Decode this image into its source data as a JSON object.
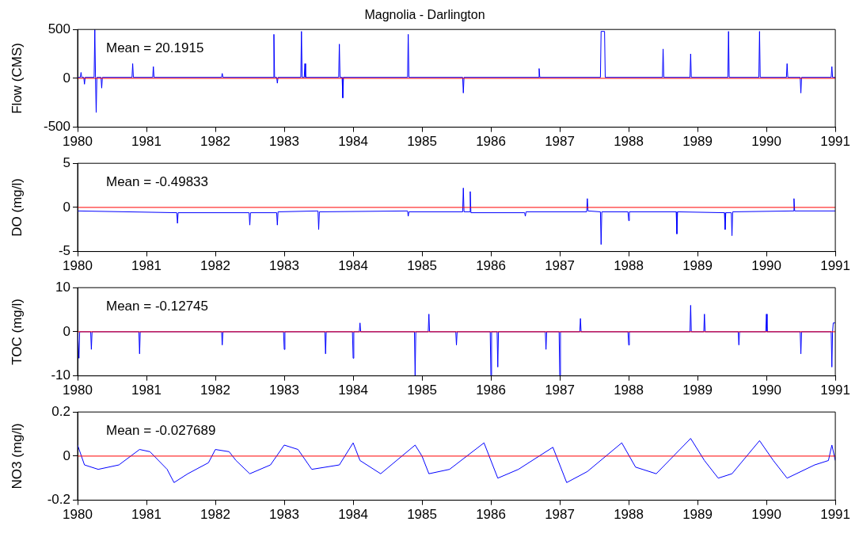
{
  "chart_data": [
    {
      "type": "line",
      "title": "Magnolia - Darlington",
      "ylabel": "Flow (CMS)",
      "xlim": [
        1980,
        1991
      ],
      "xticks": [
        1980,
        1981,
        1982,
        1983,
        1984,
        1985,
        1986,
        1987,
        1988,
        1989,
        1990,
        1991
      ],
      "ylim": [
        -500,
        500
      ],
      "yticks": [
        -500,
        0,
        500
      ],
      "annotations": [
        "Mean = 20.1915"
      ],
      "ref_lines": [
        {
          "axis": "y",
          "value": 0,
          "color": "#ff0000"
        }
      ],
      "x": [
        1980,
        1980.04,
        1980.05,
        1980.06,
        1980.09,
        1980.1,
        1980.11,
        1980.24,
        1980.25,
        1980.26,
        1980.27,
        1980.28,
        1980.34,
        1980.35,
        1980.36,
        1980.79,
        1980.8,
        1980.81,
        1981.09,
        1981.1,
        1981.11,
        1982.09,
        1982.1,
        1982.11,
        1982.84,
        1982.85,
        1982.86,
        1982.89,
        1982.9,
        1982.91,
        1983.24,
        1983.25,
        1983.26,
        1983.29,
        1983.3,
        1983.31,
        1983.79,
        1983.8,
        1983.81,
        1983.84,
        1983.85,
        1983.86,
        1984.79,
        1984.8,
        1984.81,
        1985.59,
        1985.6,
        1985.61,
        1986.69,
        1986.7,
        1986.71,
        1987.59,
        1987.6,
        1987.65,
        1987.66,
        1988.49,
        1988.5,
        1988.51,
        1988.89,
        1988.9,
        1988.91,
        1989.44,
        1989.45,
        1989.46,
        1989.89,
        1989.9,
        1989.91,
        1990.29,
        1990.3,
        1990.31,
        1990.49,
        1990.5,
        1990.51,
        1990.94,
        1990.95,
        1990.96,
        1991
      ],
      "series": [
        {
          "color": "#0000ff",
          "values": [
            10,
            10,
            60,
            10,
            10,
            -60,
            10,
            10,
            500,
            10,
            -350,
            10,
            10,
            -100,
            10,
            10,
            150,
            10,
            10,
            120,
            10,
            10,
            50,
            10,
            10,
            450,
            10,
            10,
            -50,
            10,
            10,
            480,
            10,
            10,
            150,
            10,
            10,
            350,
            10,
            10,
            -200,
            10,
            10,
            450,
            10,
            10,
            -150,
            10,
            10,
            100,
            10,
            10,
            480,
            480,
            10,
            10,
            300,
            10,
            10,
            250,
            10,
            10,
            480,
            10,
            10,
            480,
            10,
            10,
            150,
            10,
            10,
            -150,
            10,
            10,
            120,
            10,
            10
          ]
        }
      ]
    },
    {
      "type": "line",
      "ylabel": "DO (mg/l)",
      "xlim": [
        1980,
        1991
      ],
      "xticks": [
        1980,
        1981,
        1982,
        1983,
        1984,
        1985,
        1986,
        1987,
        1988,
        1989,
        1990,
        1991
      ],
      "ylim": [
        -5,
        5
      ],
      "yticks": [
        -5,
        0,
        5
      ],
      "annotations": [
        "Mean = -0.49833"
      ],
      "ref_lines": [
        {
          "axis": "y",
          "value": 0,
          "color": "#ff0000"
        }
      ],
      "x": [
        1980,
        1981.44,
        1981.45,
        1981.46,
        1982.49,
        1982.5,
        1982.51,
        1982.89,
        1982.9,
        1982.91,
        1983.49,
        1983.5,
        1983.51,
        1984.79,
        1984.8,
        1984.81,
        1985.59,
        1985.6,
        1985.61,
        1985.69,
        1985.7,
        1985.71,
        1986.49,
        1986.5,
        1986.51,
        1987.39,
        1987.4,
        1987.41,
        1987.59,
        1987.6,
        1987.61,
        1987.99,
        1988,
        1988.01,
        1988.69,
        1988.7,
        1988.71,
        1989.39,
        1989.4,
        1989.41,
        1989.49,
        1989.5,
        1989.51,
        1990.39,
        1990.4,
        1990.41,
        1991
      ],
      "series": [
        {
          "color": "#0000ff",
          "values": [
            -0.4,
            -0.6,
            -1.8,
            -0.6,
            -0.6,
            -2,
            -0.6,
            -0.6,
            -2,
            -0.5,
            -0.4,
            -2.5,
            -0.5,
            -0.4,
            -1,
            -0.5,
            -0.5,
            2.2,
            -0.5,
            -0.5,
            1.8,
            -0.6,
            -0.6,
            -1,
            -0.5,
            -0.5,
            1,
            -0.4,
            -0.5,
            -4.2,
            -0.5,
            -0.5,
            -1.5,
            -0.5,
            -0.5,
            -3,
            -0.5,
            -0.6,
            -2.5,
            -0.6,
            -0.6,
            -3.2,
            -0.5,
            -0.4,
            1,
            -0.4,
            -0.4
          ]
        }
      ]
    },
    {
      "type": "line",
      "ylabel": "TOC (mg/l)",
      "xlim": [
        1980,
        1991
      ],
      "xticks": [
        1980,
        1981,
        1982,
        1983,
        1984,
        1985,
        1986,
        1987,
        1988,
        1989,
        1990,
        1991
      ],
      "ylim": [
        -10,
        10
      ],
      "yticks": [
        -10,
        0,
        10
      ],
      "annotations": [
        "Mean = -0.12745"
      ],
      "ref_lines": [
        {
          "axis": "y",
          "value": 0,
          "color": "#ff0000"
        }
      ],
      "x": [
        1980,
        1980.01,
        1980.02,
        1980.03,
        1980.19,
        1980.2,
        1980.21,
        1980.89,
        1980.9,
        1980.91,
        1982.09,
        1982.1,
        1982.11,
        1982.99,
        1983,
        1983.01,
        1983.59,
        1983.6,
        1983.61,
        1983.99,
        1984,
        1984.01,
        1984.09,
        1984.1,
        1984.11,
        1984.89,
        1984.9,
        1984.91,
        1985.09,
        1985.1,
        1985.11,
        1985.49,
        1985.5,
        1985.51,
        1985.99,
        1986,
        1986.01,
        1986.09,
        1986.1,
        1986.11,
        1986.79,
        1986.8,
        1986.81,
        1986.99,
        1987,
        1987.01,
        1987.29,
        1987.3,
        1987.31,
        1987.99,
        1988,
        1988.01,
        1988.89,
        1988.9,
        1988.91,
        1989.09,
        1989.1,
        1989.11,
        1989.59,
        1989.6,
        1989.61,
        1989.99,
        1990,
        1990.01,
        1990.49,
        1990.5,
        1990.51,
        1990.94,
        1990.95,
        1990.96,
        1990.97,
        1991
      ],
      "series": [
        {
          "color": "#0000ff",
          "values": [
            0,
            0,
            -6,
            0,
            0,
            -4,
            0,
            0,
            -5,
            0,
            0,
            -3,
            0,
            0,
            -4,
            0,
            0,
            -5,
            0,
            0,
            -6,
            0,
            0,
            2,
            0,
            0,
            -10,
            0,
            0,
            4,
            0,
            0,
            -3,
            0,
            0,
            -10,
            0,
            0,
            -8,
            0,
            0,
            -4,
            0,
            0,
            -10,
            0,
            0,
            3,
            0,
            0,
            -3,
            0,
            0,
            6,
            0,
            0,
            4,
            0,
            0,
            -3,
            0,
            0,
            4,
            0,
            0,
            -5,
            0,
            0,
            -8,
            0,
            2,
            2
          ]
        }
      ]
    },
    {
      "type": "line",
      "ylabel": "NO3 (mg/l)",
      "xlim": [
        1980,
        1991
      ],
      "xticks": [
        1980,
        1981,
        1982,
        1983,
        1984,
        1985,
        1986,
        1987,
        1988,
        1989,
        1990,
        1991
      ],
      "ylim": [
        -0.2,
        0.2
      ],
      "yticks": [
        -0.2,
        0,
        0.2
      ],
      "annotations": [
        "Mean = -0.027689"
      ],
      "ref_lines": [
        {
          "axis": "y",
          "value": 0,
          "color": "#ff0000"
        }
      ],
      "x": [
        1980,
        1980.1,
        1980.3,
        1980.6,
        1980.9,
        1981.05,
        1981.3,
        1981.4,
        1981.6,
        1981.9,
        1982.0,
        1982.2,
        1982.3,
        1982.5,
        1982.8,
        1983.0,
        1983.2,
        1983.4,
        1983.8,
        1984.0,
        1984.1,
        1984.4,
        1984.9,
        1985.0,
        1985.1,
        1985.4,
        1985.9,
        1986.1,
        1986.4,
        1986.9,
        1987.1,
        1987.4,
        1987.9,
        1988.1,
        1988.4,
        1988.9,
        1989.1,
        1989.3,
        1989.5,
        1989.9,
        1990.1,
        1990.3,
        1990.7,
        1990.9,
        1990.95,
        1991
      ],
      "series": [
        {
          "color": "#0000ff",
          "values": [
            0.05,
            -0.04,
            -0.06,
            -0.04,
            0.03,
            0.02,
            -0.06,
            -0.12,
            -0.08,
            -0.03,
            0.03,
            0.02,
            -0.02,
            -0.08,
            -0.04,
            0.05,
            0.03,
            -0.06,
            -0.04,
            0.06,
            -0.02,
            -0.08,
            0.05,
            0.0,
            -0.08,
            -0.06,
            0.06,
            -0.1,
            -0.06,
            0.04,
            -0.12,
            -0.07,
            0.06,
            -0.05,
            -0.08,
            0.08,
            -0.02,
            -0.1,
            -0.08,
            0.07,
            -0.02,
            -0.1,
            -0.04,
            -0.02,
            0.05,
            -0.02
          ]
        }
      ]
    }
  ]
}
